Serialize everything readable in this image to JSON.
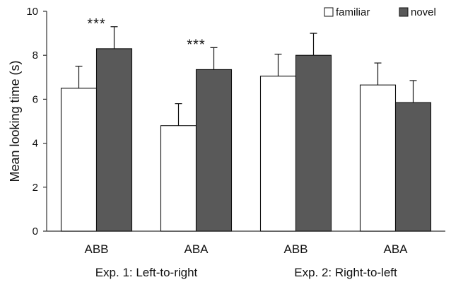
{
  "colors": {
    "familiar_fill": "#ffffff",
    "novel_fill": "#595959",
    "bar_stroke": "#111111",
    "error_bar": "#111111"
  },
  "chart_data": {
    "type": "bar",
    "title": "",
    "xlabel": "",
    "ylabel": "Mean looking time (s)",
    "ylim": [
      0,
      10
    ],
    "yticks": [
      0,
      2,
      4,
      6,
      8,
      10
    ],
    "grid": false,
    "legend_position": "top-right",
    "categories": [
      "ABB",
      "ABA",
      "ABB",
      "ABA"
    ],
    "groups": [
      {
        "label": "Exp. 1: Left-to-right",
        "categories": [
          0,
          1
        ]
      },
      {
        "label": "Exp. 2: Right-to-left",
        "categories": [
          2,
          3
        ]
      }
    ],
    "series": [
      {
        "name": "familiar",
        "values": [
          6.5,
          4.8,
          7.05,
          6.65
        ],
        "errors": [
          1.0,
          1.0,
          1.0,
          1.0
        ]
      },
      {
        "name": "novel",
        "values": [
          8.3,
          7.35,
          8.0,
          5.85
        ],
        "errors": [
          1.0,
          1.0,
          1.0,
          1.0
        ]
      }
    ],
    "annotations": [
      {
        "category": 0,
        "text": "***"
      },
      {
        "category": 1,
        "text": "***"
      }
    ]
  }
}
